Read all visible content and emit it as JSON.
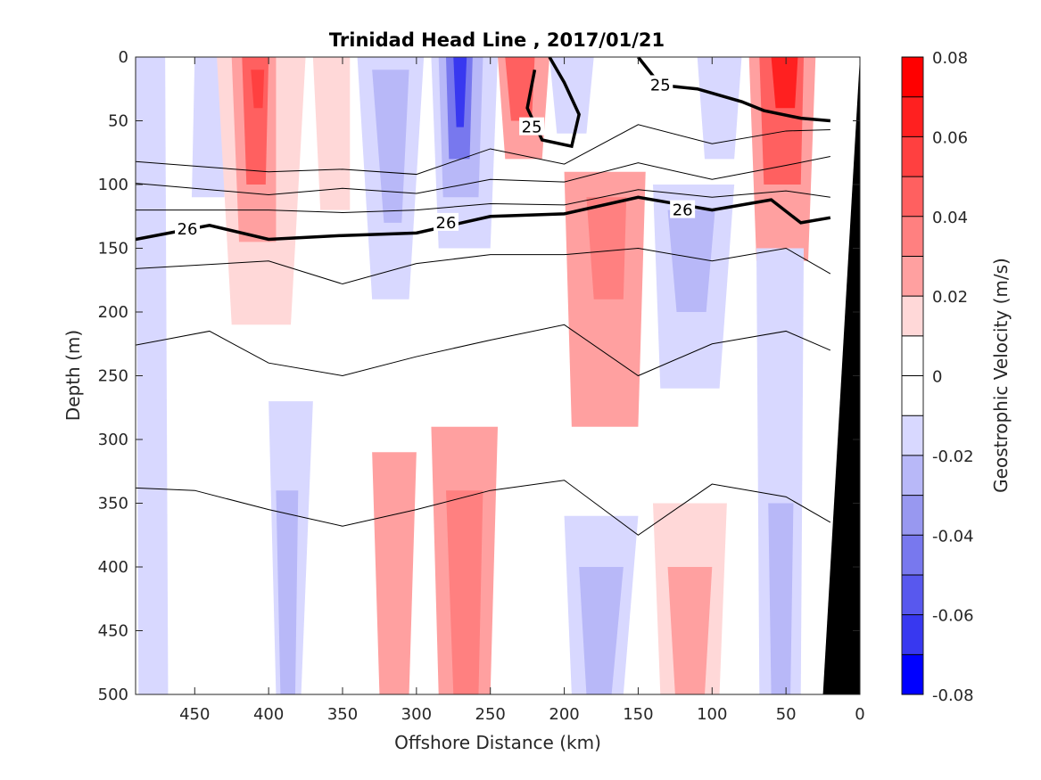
{
  "chart_data": {
    "type": "heatmap",
    "title": "Trinidad Head Line , 2017/01/21",
    "xlabel": "Offshore Distance (km)",
    "ylabel": "Depth (m)",
    "xlim": [
      490,
      0
    ],
    "ylim": [
      0,
      500
    ],
    "x_reversed": true,
    "y_reversed": true,
    "xticks": [
      "450",
      "400",
      "350",
      "300",
      "250",
      "200",
      "150",
      "100",
      "50",
      "0"
    ],
    "xtick_values": [
      450,
      400,
      350,
      300,
      250,
      200,
      150,
      100,
      50,
      0
    ],
    "yticks": [
      "0",
      "50",
      "100",
      "150",
      "200",
      "250",
      "300",
      "350",
      "400",
      "450",
      "500"
    ],
    "ytick_values": [
      0,
      50,
      100,
      150,
      200,
      250,
      300,
      350,
      400,
      450,
      500
    ],
    "colorbar": {
      "label": "Geostrophic Velocity (m/s)",
      "ticks": [
        "0.08",
        "0.06",
        "0.04",
        "0.02",
        "0",
        "-0.02",
        "-0.04",
        "-0.06",
        "-0.08"
      ],
      "tick_values": [
        0.08,
        0.06,
        0.04,
        0.02,
        0,
        -0.02,
        -0.04,
        -0.06,
        -0.08
      ],
      "levels": [
        0.08,
        0.07,
        0.06,
        0.05,
        0.04,
        0.03,
        0.02,
        0.01,
        0,
        -0.01,
        -0.02,
        -0.03,
        -0.04,
        -0.05,
        -0.06,
        -0.07,
        -0.08
      ],
      "colors": [
        "#ff0000",
        "#ff2020",
        "#ff4040",
        "#ff6060",
        "#ff8080",
        "#ffa0a0",
        "#ffd8d8",
        "#ffffff",
        "#ffffff",
        "#d8d8ff",
        "#b8b8f8",
        "#9898f0",
        "#7878ee",
        "#5858ee",
        "#3838f0",
        "#0000ff"
      ]
    },
    "velocity_patches": [
      {
        "v": -0.015,
        "x": [
          490,
          470,
          468,
          488
        ]
      },
      {
        "v": -0.015,
        "x": [
          450,
          425,
          430,
          452
        ],
        "y": [
          0,
          0,
          110,
          110
        ]
      },
      {
        "v": 0.015,
        "x": [
          435,
          375,
          385,
          425
        ],
        "y": [
          0,
          0,
          210,
          210
        ]
      },
      {
        "v": 0.025,
        "x": [
          425,
          395,
          395,
          420
        ],
        "y": [
          0,
          0,
          145,
          145
        ]
      },
      {
        "v": 0.04,
        "x": [
          418,
          400,
          402,
          415
        ],
        "y": [
          0,
          0,
          100,
          100
        ]
      },
      {
        "v": 0.055,
        "x": [
          412,
          403,
          404,
          410
        ],
        "y": [
          10,
          10,
          40,
          40
        ]
      },
      {
        "v": 0.015,
        "x": [
          370,
          345,
          345,
          365
        ],
        "y": [
          0,
          0,
          120,
          120
        ]
      },
      {
        "v": -0.015,
        "x": [
          340,
          295,
          305,
          330
        ],
        "y": [
          0,
          0,
          190,
          190
        ]
      },
      {
        "v": -0.025,
        "x": [
          330,
          305,
          310,
          322
        ],
        "y": [
          10,
          10,
          130,
          130
        ]
      },
      {
        "v": -0.015,
        "x": [
          290,
          245,
          250,
          285
        ],
        "y": [
          0,
          0,
          150,
          150
        ]
      },
      {
        "v": -0.03,
        "x": [
          285,
          255,
          258,
          282
        ],
        "y": [
          0,
          0,
          110,
          110
        ]
      },
      {
        "v": -0.05,
        "x": [
          280,
          262,
          264,
          278
        ],
        "y": [
          0,
          0,
          80,
          80
        ]
      },
      {
        "v": -0.07,
        "x": [
          275,
          266,
          268,
          273
        ],
        "y": [
          0,
          0,
          55,
          55
        ]
      },
      {
        "v": 0.02,
        "x": [
          245,
          210,
          215,
          240
        ],
        "y": [
          0,
          0,
          80,
          80
        ]
      },
      {
        "v": 0.04,
        "x": [
          240,
          220,
          222,
          236
        ],
        "y": [
          0,
          0,
          50,
          50
        ]
      },
      {
        "v": -0.02,
        "x": [
          210,
          180,
          185,
          205
        ],
        "y": [
          0,
          0,
          60,
          60
        ]
      },
      {
        "v": 0.02,
        "x": [
          200,
          145,
          150,
          195
        ],
        "y": [
          90,
          90,
          290,
          290
        ]
      },
      {
        "v": 0.03,
        "x": [
          185,
          158,
          160,
          180
        ],
        "y": [
          110,
          110,
          190,
          190
        ]
      },
      {
        "v": -0.02,
        "x": [
          140,
          85,
          95,
          135
        ],
        "y": [
          100,
          100,
          260,
          260
        ]
      },
      {
        "v": -0.03,
        "x": [
          130,
          98,
          104,
          124
        ],
        "y": [
          120,
          120,
          200,
          200
        ]
      },
      {
        "v": 0.02,
        "x": [
          75,
          30,
          35,
          70
        ],
        "y": [
          0,
          0,
          160,
          160
        ]
      },
      {
        "v": 0.04,
        "x": [
          68,
          38,
          40,
          65
        ],
        "y": [
          0,
          0,
          100,
          100
        ]
      },
      {
        "v": 0.065,
        "x": [
          60,
          42,
          44,
          57
        ],
        "y": [
          0,
          0,
          40,
          40
        ]
      },
      {
        "v": -0.015,
        "x": [
          110,
          80,
          85,
          105
        ],
        "y": [
          0,
          0,
          80,
          80
        ]
      },
      {
        "v": -0.015,
        "x": [
          400,
          370,
          378,
          395
        ],
        "y": [
          270,
          270,
          500,
          500
        ]
      },
      {
        "v": -0.025,
        "x": [
          395,
          380,
          382,
          392
        ],
        "y": [
          340,
          340,
          500,
          500
        ]
      },
      {
        "v": 0.02,
        "x": [
          330,
          300,
          305,
          325
        ],
        "y": [
          310,
          310,
          500,
          500
        ]
      },
      {
        "v": 0.02,
        "x": [
          290,
          245,
          250,
          285
        ],
        "y": [
          290,
          290,
          500,
          500
        ]
      },
      {
        "v": 0.035,
        "x": [
          280,
          255,
          258,
          275
        ],
        "y": [
          340,
          340,
          500,
          500
        ]
      },
      {
        "v": -0.015,
        "x": [
          200,
          150,
          160,
          195
        ],
        "y": [
          360,
          360,
          500,
          500
        ]
      },
      {
        "v": -0.03,
        "x": [
          190,
          160,
          168,
          185
        ],
        "y": [
          400,
          400,
          500,
          500
        ]
      },
      {
        "v": 0.015,
        "x": [
          140,
          90,
          95,
          135
        ],
        "y": [
          350,
          350,
          500,
          500
        ]
      },
      {
        "v": 0.025,
        "x": [
          130,
          100,
          105,
          125
        ],
        "y": [
          400,
          400,
          500,
          500
        ]
      },
      {
        "v": -0.015,
        "x": [
          70,
          38,
          40,
          68
        ],
        "y": [
          150,
          150,
          500,
          500
        ]
      },
      {
        "v": -0.03,
        "x": [
          62,
          45,
          47,
          60
        ],
        "y": [
          350,
          350,
          500,
          500
        ]
      }
    ],
    "isopycnals": [
      {
        "label": "25",
        "points": [
          [
            210,
            0
          ],
          [
            200,
            20
          ],
          [
            190,
            45
          ],
          [
            195,
            70
          ],
          [
            215,
            65
          ],
          [
            225,
            40
          ],
          [
            220,
            10
          ]
        ]
      },
      {
        "label": "25",
        "points": [
          [
            150,
            0
          ],
          [
            135,
            22
          ],
          [
            110,
            25
          ],
          [
            80,
            35
          ],
          [
            65,
            42
          ],
          [
            40,
            48
          ],
          [
            20,
            50
          ]
        ]
      },
      {
        "label": "26",
        "points": [
          [
            490,
            143
          ],
          [
            440,
            132
          ],
          [
            400,
            143
          ],
          [
            350,
            140
          ],
          [
            300,
            138
          ],
          [
            250,
            125
          ],
          [
            200,
            123
          ],
          [
            150,
            110
          ],
          [
            100,
            120
          ],
          [
            60,
            112
          ],
          [
            40,
            130
          ],
          [
            20,
            126
          ]
        ]
      },
      {
        "points": [
          [
            490,
            82
          ],
          [
            400,
            90
          ],
          [
            350,
            88
          ],
          [
            300,
            92
          ],
          [
            250,
            72
          ],
          [
            200,
            84
          ],
          [
            150,
            53
          ],
          [
            100,
            68
          ],
          [
            50,
            58
          ],
          [
            20,
            57
          ]
        ]
      },
      {
        "points": [
          [
            490,
            99
          ],
          [
            400,
            108
          ],
          [
            350,
            103
          ],
          [
            300,
            107
          ],
          [
            250,
            96
          ],
          [
            200,
            98
          ],
          [
            150,
            83
          ],
          [
            100,
            96
          ],
          [
            50,
            85
          ],
          [
            20,
            78
          ]
        ]
      },
      {
        "points": [
          [
            490,
            120
          ],
          [
            400,
            120
          ],
          [
            350,
            122
          ],
          [
            300,
            120
          ],
          [
            250,
            115
          ],
          [
            200,
            116
          ],
          [
            150,
            104
          ],
          [
            100,
            110
          ],
          [
            50,
            105
          ],
          [
            20,
            110
          ]
        ]
      },
      {
        "points": [
          [
            490,
            166
          ],
          [
            400,
            160
          ],
          [
            350,
            178
          ],
          [
            300,
            162
          ],
          [
            250,
            155
          ],
          [
            200,
            155
          ],
          [
            150,
            150
          ],
          [
            100,
            160
          ],
          [
            50,
            150
          ],
          [
            20,
            170
          ]
        ]
      },
      {
        "points": [
          [
            490,
            226
          ],
          [
            440,
            215
          ],
          [
            400,
            240
          ],
          [
            350,
            250
          ],
          [
            300,
            235
          ],
          [
            250,
            222
          ],
          [
            200,
            210
          ],
          [
            150,
            250
          ],
          [
            100,
            225
          ],
          [
            50,
            215
          ],
          [
            20,
            230
          ]
        ]
      },
      {
        "points": [
          [
            490,
            338
          ],
          [
            450,
            340
          ],
          [
            400,
            355
          ],
          [
            350,
            368
          ],
          [
            300,
            355
          ],
          [
            250,
            340
          ],
          [
            200,
            332
          ],
          [
            150,
            375
          ],
          [
            100,
            335
          ],
          [
            50,
            345
          ],
          [
            20,
            365
          ]
        ]
      }
    ],
    "contour_labels": [
      {
        "text": "25",
        "x": 135,
        "y": 22
      },
      {
        "text": "25",
        "x": 222,
        "y": 55
      },
      {
        "text": "26",
        "x": 455,
        "y": 135
      },
      {
        "text": "26",
        "x": 280,
        "y": 130
      },
      {
        "text": "26",
        "x": 120,
        "y": 120
      }
    ],
    "bathymetry": [
      [
        0,
        0
      ],
      [
        25,
        500
      ],
      [
        0,
        500
      ]
    ]
  }
}
